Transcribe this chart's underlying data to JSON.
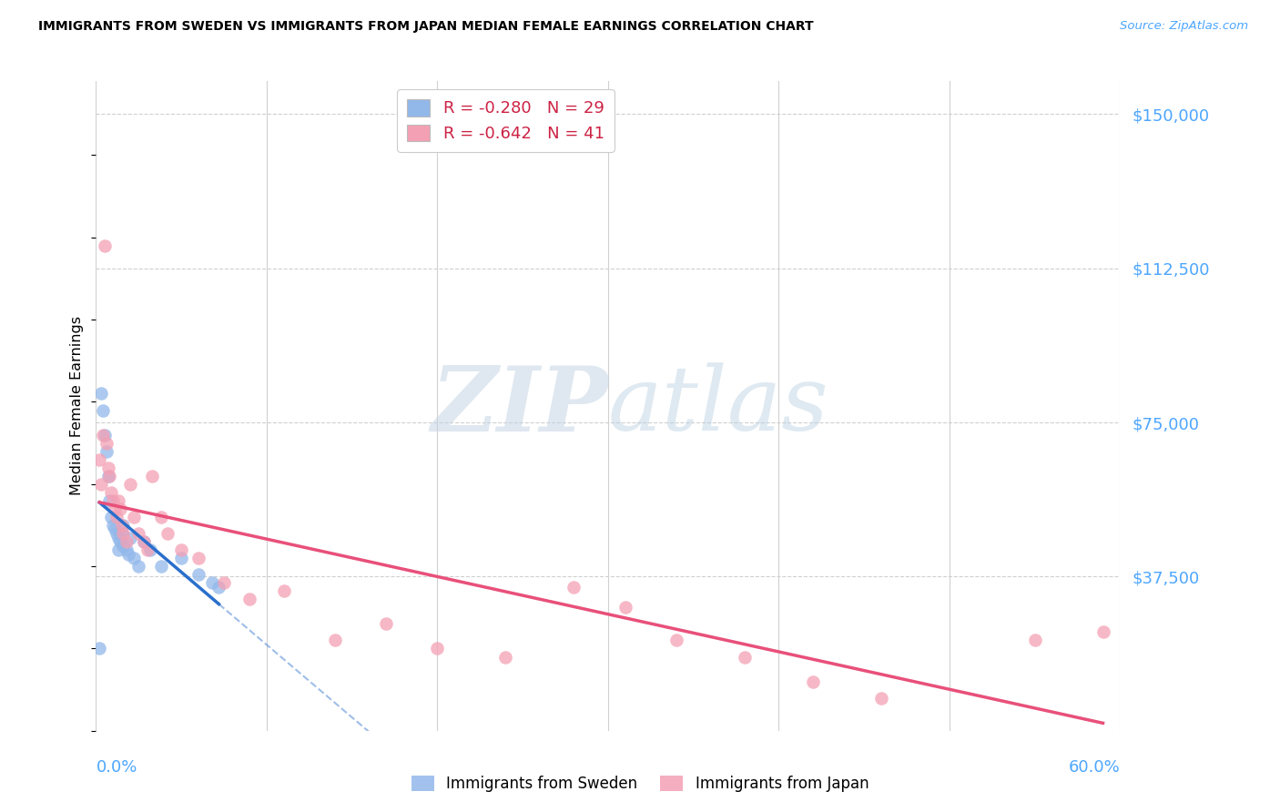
{
  "title": "IMMIGRANTS FROM SWEDEN VS IMMIGRANTS FROM JAPAN MEDIAN FEMALE EARNINGS CORRELATION CHART",
  "source": "Source: ZipAtlas.com",
  "ylabel": "Median Female Earnings",
  "ytick_labels": [
    "$150,000",
    "$112,500",
    "$75,000",
    "$37,500"
  ],
  "ytick_values": [
    150000,
    112500,
    75000,
    37500
  ],
  "xlim": [
    0.0,
    0.6
  ],
  "ylim": [
    0,
    158000
  ],
  "sweden_color": "#92b8ea",
  "japan_color": "#f4a0b4",
  "sweden_line_color": "#2a6fcc",
  "japan_line_color": "#e8507a",
  "sweden_R": -0.28,
  "sweden_N": 29,
  "japan_R": -0.642,
  "japan_N": 41,
  "legend_label_sweden": "Immigrants from Sweden",
  "legend_label_japan": "Immigrants from Japan",
  "sweden_x": [
    0.002,
    0.003,
    0.004,
    0.005,
    0.006,
    0.007,
    0.008,
    0.009,
    0.01,
    0.011,
    0.012,
    0.013,
    0.013,
    0.014,
    0.015,
    0.016,
    0.016,
    0.018,
    0.019,
    0.02,
    0.022,
    0.025,
    0.028,
    0.032,
    0.038,
    0.05,
    0.06,
    0.068,
    0.072
  ],
  "sweden_y": [
    20000,
    82000,
    78000,
    72000,
    68000,
    62000,
    56000,
    52000,
    50000,
    49000,
    48000,
    47000,
    44000,
    46000,
    48000,
    50000,
    45000,
    44000,
    43000,
    47000,
    42000,
    40000,
    46000,
    44000,
    40000,
    42000,
    38000,
    36000,
    35000
  ],
  "japan_x": [
    0.002,
    0.003,
    0.004,
    0.005,
    0.006,
    0.007,
    0.008,
    0.009,
    0.01,
    0.011,
    0.012,
    0.013,
    0.014,
    0.015,
    0.016,
    0.018,
    0.02,
    0.022,
    0.025,
    0.028,
    0.03,
    0.033,
    0.038,
    0.042,
    0.05,
    0.06,
    0.075,
    0.09,
    0.11,
    0.14,
    0.17,
    0.2,
    0.24,
    0.28,
    0.31,
    0.34,
    0.38,
    0.42,
    0.46,
    0.55,
    0.59
  ],
  "japan_y": [
    66000,
    60000,
    72000,
    118000,
    70000,
    64000,
    62000,
    58000,
    56000,
    54000,
    52000,
    56000,
    54000,
    50000,
    48000,
    46000,
    60000,
    52000,
    48000,
    46000,
    44000,
    62000,
    52000,
    48000,
    44000,
    42000,
    36000,
    32000,
    34000,
    22000,
    26000,
    20000,
    18000,
    35000,
    30000,
    22000,
    18000,
    12000,
    8000,
    22000,
    24000
  ]
}
